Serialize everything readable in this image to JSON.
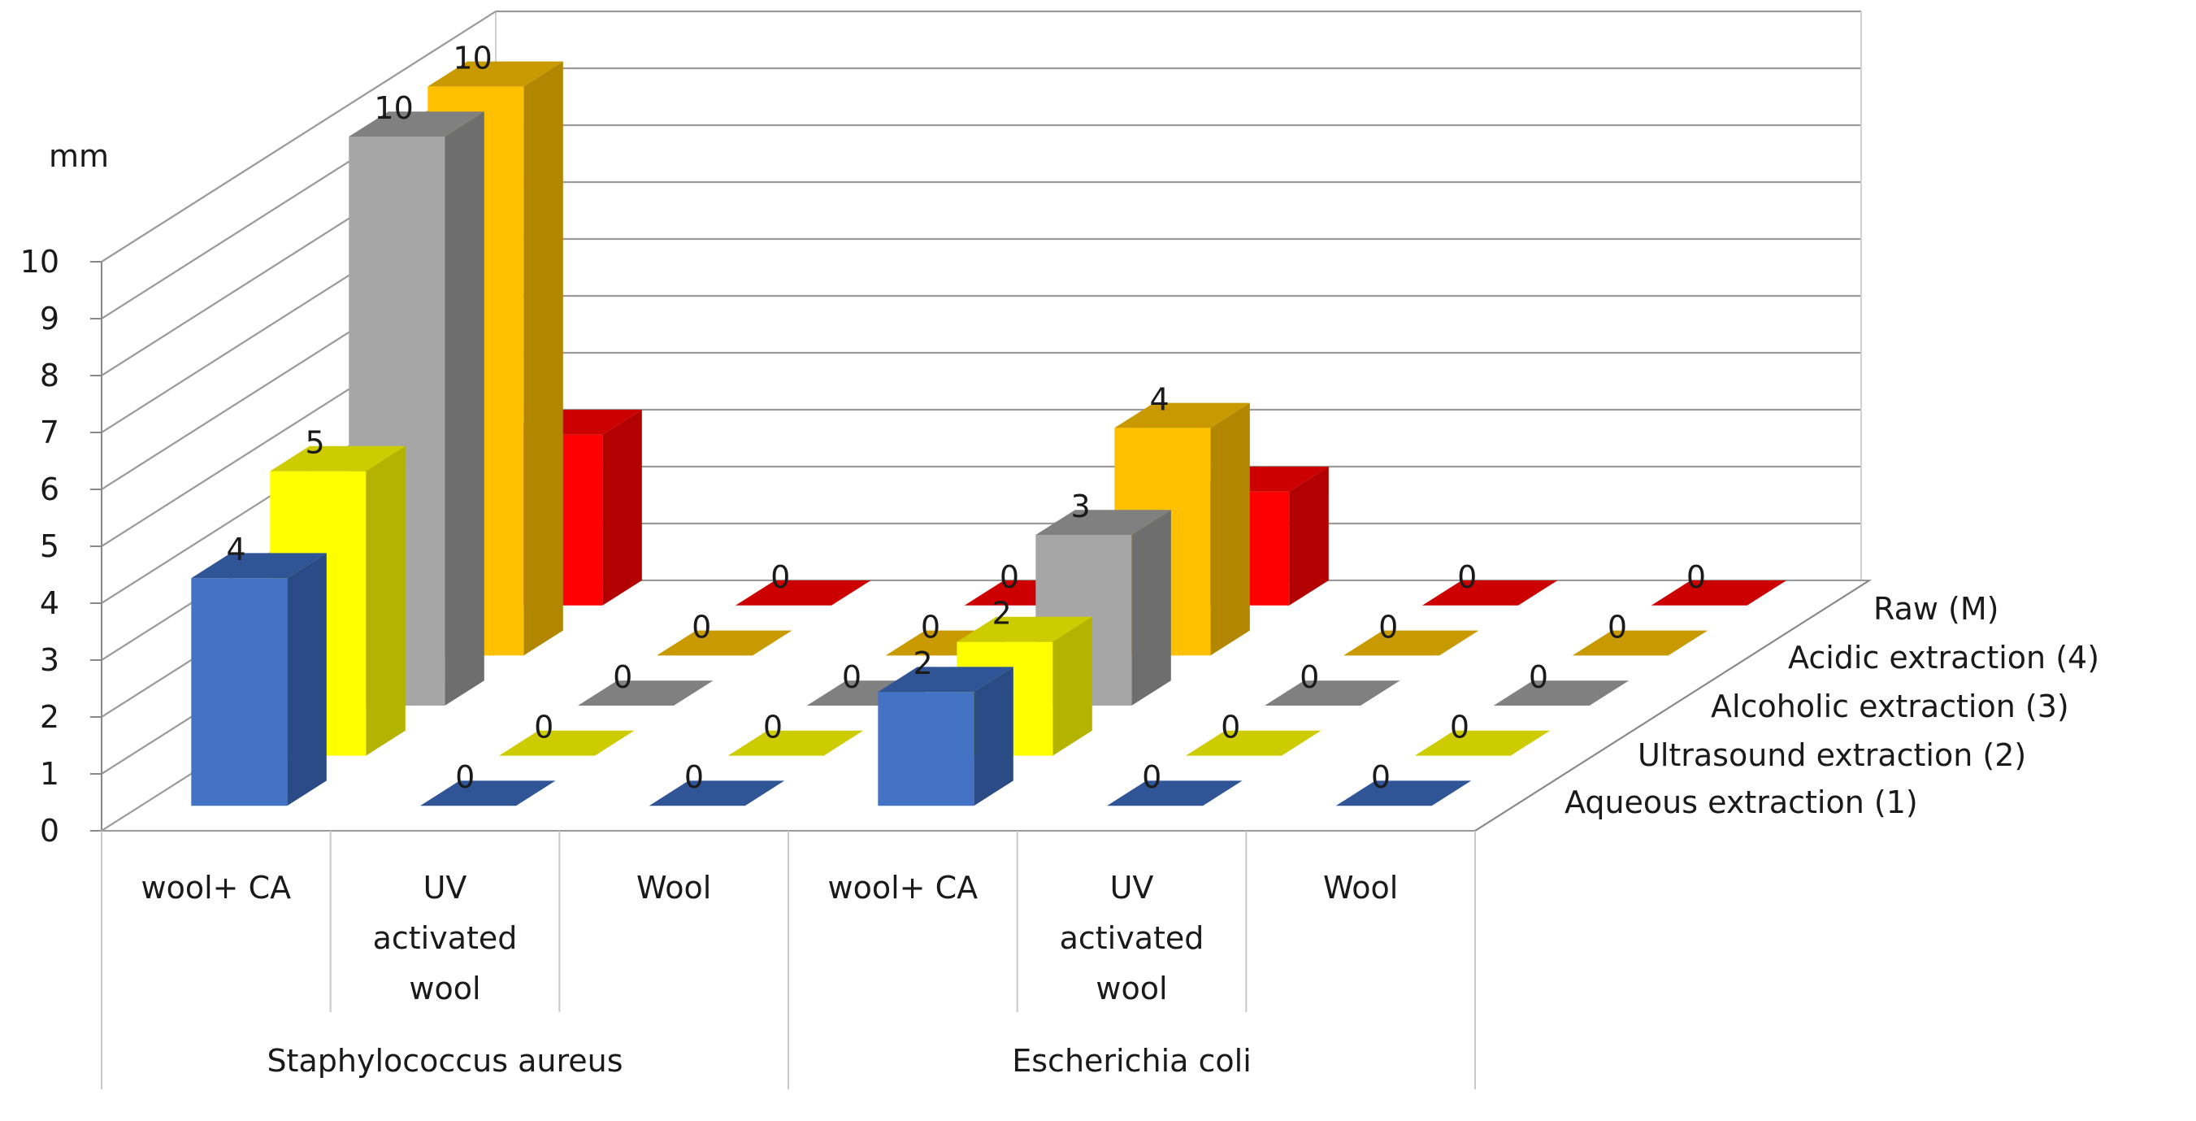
{
  "chart_data": {
    "type": "bar",
    "ylabel": "mm",
    "ylim": [
      0,
      10
    ],
    "yticks": [
      "0",
      "1",
      "2",
      "3",
      "4",
      "5",
      "6",
      "7",
      "8",
      "9",
      "10"
    ],
    "groups": [
      {
        "name": "Staphylococcus aureus",
        "categories": [
          "wool+ CA",
          "UV activated wool",
          "Wool"
        ]
      },
      {
        "name": "Escherichia coli",
        "categories": [
          "wool+ CA",
          "UV activated wool",
          "Wool"
        ]
      }
    ],
    "categories": [
      "wool+ CA",
      "UV activated wool",
      "Wool",
      "wool+ CA",
      "UV activated wool",
      "Wool"
    ],
    "category_lines": [
      [
        "wool+ CA"
      ],
      [
        "UV",
        "activated",
        "wool"
      ],
      [
        "Wool"
      ],
      [
        "wool+ CA"
      ],
      [
        "UV",
        "activated",
        "wool"
      ],
      [
        "Wool"
      ]
    ],
    "series": [
      {
        "name": "Aqueous extraction (1)",
        "values": [
          4,
          0,
          0,
          2,
          0,
          0
        ]
      },
      {
        "name": "Ultrasound extraction (2)",
        "values": [
          5,
          0,
          0,
          2,
          0,
          0
        ]
      },
      {
        "name": "Alcoholic extraction (3)",
        "values": [
          10,
          0,
          0,
          3,
          0,
          0
        ]
      },
      {
        "name": "Acidic extraction (4)",
        "values": [
          10,
          0,
          0,
          4,
          0,
          0
        ]
      },
      {
        "name": "Raw (M)",
        "values": [
          3,
          0,
          0,
          2,
          0,
          0
        ]
      }
    ],
    "colors": {
      "Aqueous extraction (1)": {
        "front": "#4472c4",
        "side": "#2b4b86",
        "top": "#2f5597"
      },
      "Ultrasound extraction (2)": {
        "front": "#ffff00",
        "side": "#b3b300",
        "top": "#cccc00"
      },
      "Alcoholic extraction (3)": {
        "front": "#a6a6a6",
        "side": "#6e6e6e",
        "top": "#808080"
      },
      "Acidic extraction (4)": {
        "front": "#ffc000",
        "side": "#b38600",
        "top": "#c89a00"
      },
      "Raw (M)": {
        "front": "#ff0000",
        "side": "#b30000",
        "top": "#cc0000"
      }
    },
    "grid": true,
    "legend": "series axis on right (depth)"
  }
}
